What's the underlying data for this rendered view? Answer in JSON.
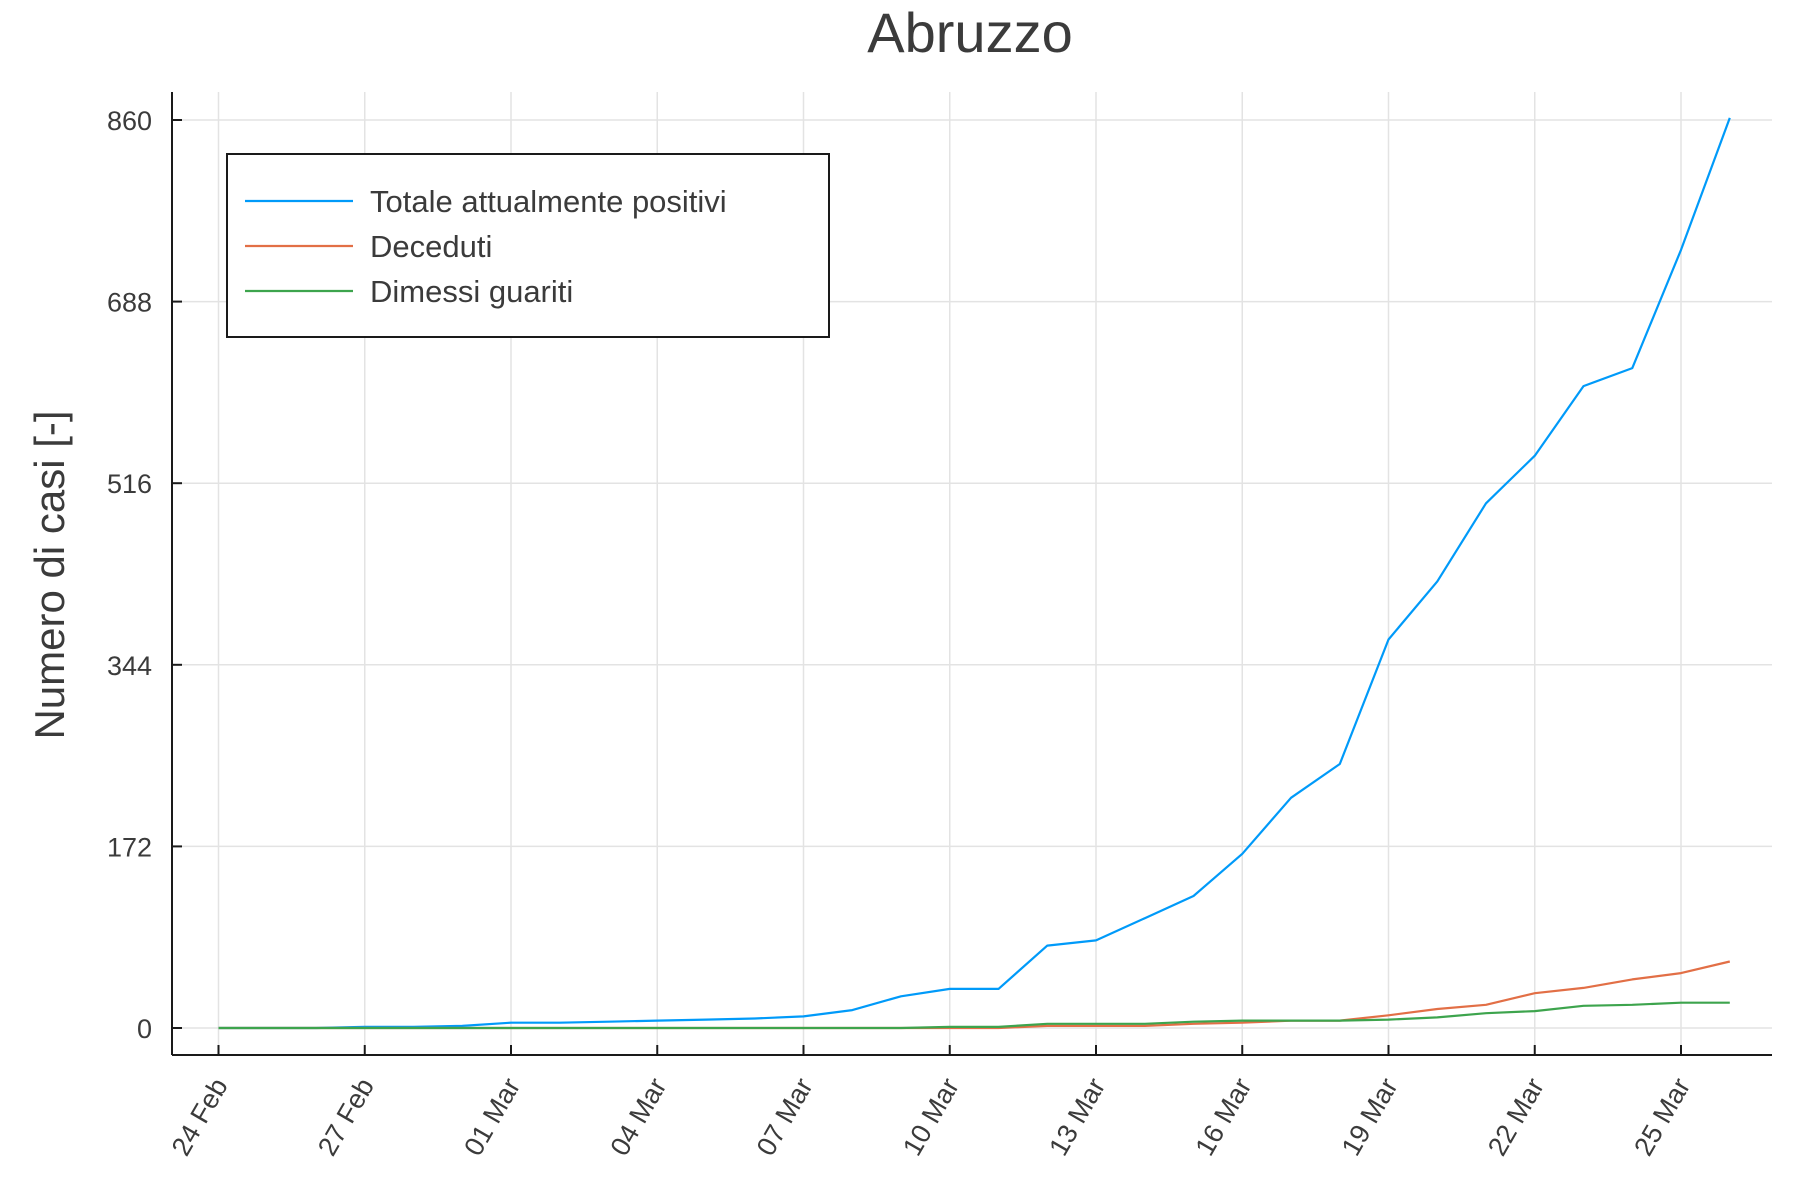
{
  "chart_data": {
    "type": "line",
    "title": "Abruzzo",
    "xlabel": "",
    "ylabel": "Numero di casi [-]",
    "x": [
      "24 Feb",
      "25 Feb",
      "26 Feb",
      "27 Feb",
      "28 Feb",
      "29 Feb",
      "01 Mar",
      "02 Mar",
      "03 Mar",
      "04 Mar",
      "05 Mar",
      "06 Mar",
      "07 Mar",
      "08 Mar",
      "09 Mar",
      "10 Mar",
      "11 Mar",
      "12 Mar",
      "13 Mar",
      "14 Mar",
      "15 Mar",
      "16 Mar",
      "17 Mar",
      "18 Mar",
      "19 Mar",
      "20 Mar",
      "21 Mar",
      "22 Mar",
      "23 Mar",
      "24 Mar",
      "25 Mar",
      "26 Mar"
    ],
    "xticks": [
      "24 Feb",
      "27 Feb",
      "01 Mar",
      "04 Mar",
      "07 Mar",
      "10 Mar",
      "13 Mar",
      "16 Mar",
      "19 Mar",
      "22 Mar",
      "25 Mar"
    ],
    "yticks": [
      0,
      172,
      344,
      516,
      688,
      860
    ],
    "ylim": [
      -26,
      866
    ],
    "grid": true,
    "legend_position": "top-left",
    "series": [
      {
        "name": "Totale attualmente positivi",
        "color": "#009af9",
        "values": [
          0,
          0,
          0,
          1,
          1,
          2,
          5,
          5,
          6,
          7,
          8,
          9,
          11,
          17,
          30,
          37,
          37,
          78,
          83,
          104,
          125,
          165,
          218,
          250,
          368,
          423,
          497,
          542,
          608,
          625,
          737,
          862
        ]
      },
      {
        "name": "Deceduti",
        "color": "#e26f46",
        "values": [
          0,
          0,
          0,
          0,
          0,
          0,
          0,
          0,
          0,
          0,
          0,
          0,
          0,
          0,
          0,
          0,
          0,
          2,
          2,
          2,
          4,
          5,
          7,
          7,
          12,
          18,
          22,
          33,
          38,
          46,
          52,
          63
        ]
      },
      {
        "name": "Dimessi guariti",
        "color": "#3da44d",
        "values": [
          0,
          0,
          0,
          0,
          0,
          0,
          0,
          0,
          0,
          0,
          0,
          0,
          0,
          0,
          0,
          1,
          1,
          4,
          4,
          4,
          6,
          7,
          7,
          7,
          8,
          10,
          14,
          16,
          21,
          22,
          24,
          24
        ]
      }
    ]
  }
}
